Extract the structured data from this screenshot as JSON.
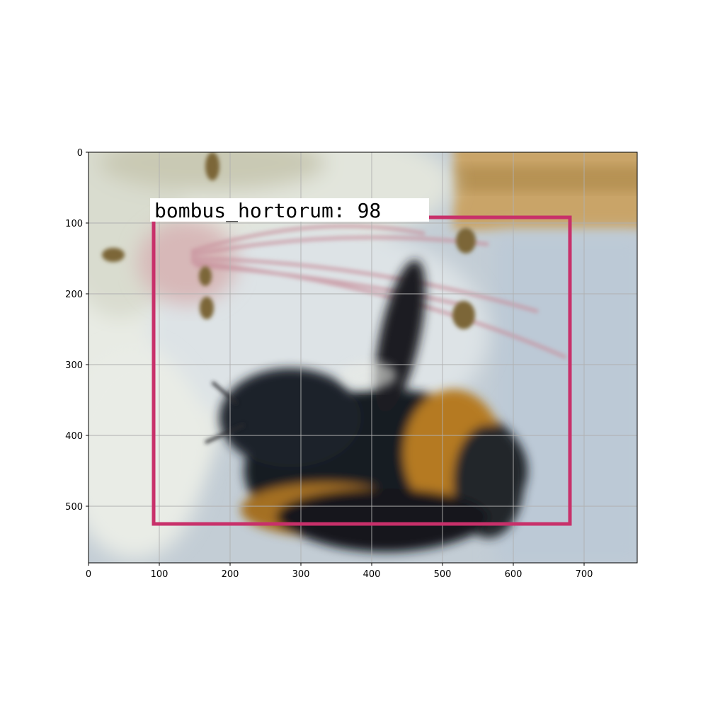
{
  "image": {
    "subject": "bumblebee on white flower",
    "width_units": 775,
    "height_units": 580
  },
  "axes": {
    "x_ticks": [
      0,
      100,
      200,
      300,
      400,
      500,
      600,
      700
    ],
    "y_ticks": [
      0,
      100,
      200,
      300,
      400,
      500
    ],
    "xlim": [
      0,
      775
    ],
    "ylim": [
      580,
      0
    ],
    "grid": true,
    "grid_color": "#b0b0b0"
  },
  "detection": {
    "label": "bombus_hortorum: 98",
    "box_color": "#c8306a",
    "x_min": 92,
    "y_min": 92,
    "x_max": 680,
    "y_max": 525
  }
}
